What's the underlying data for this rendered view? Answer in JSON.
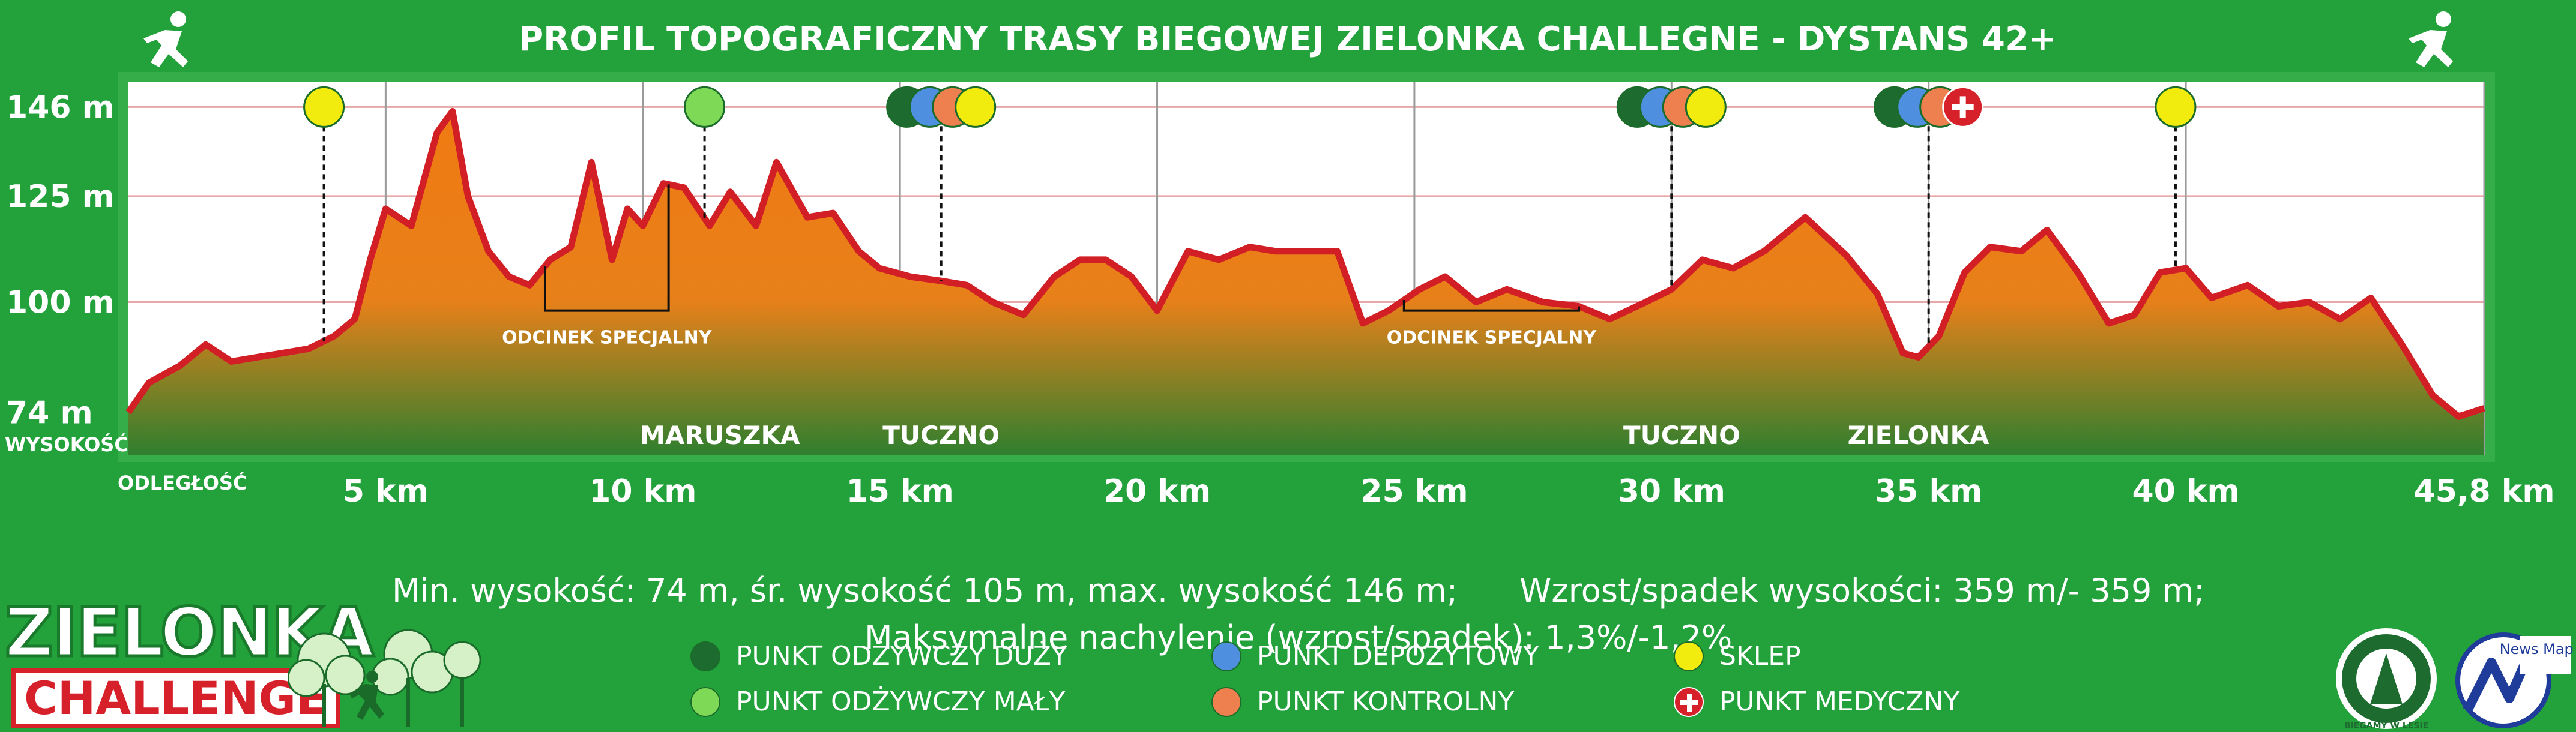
{
  "title": "PROFIL TOPOGRAFICZNY TRASY BIEGOWEJ ZIELONKA CHALLEGNE - DYSTANS 42+",
  "axis_label_y": "WYSOKOŚĆ",
  "axis_label_x": "ODLEGŁOŚĆ",
  "chart_data": {
    "type": "area",
    "title": "PROFIL TOPOGRAFICZNY TRASY BIEGOWEJ ZIELONKA CHALLEGNE - DYSTANS 42+",
    "xlabel": "ODLEGŁOŚĆ",
    "ylabel": "WYSOKOŚĆ",
    "xlim": [
      0,
      45.8
    ],
    "ylim": [
      64,
      152
    ],
    "y_ticks": [
      74,
      100,
      125,
      146
    ],
    "y_tick_labels": [
      "74 m",
      "100 m",
      "125 m",
      "146 m"
    ],
    "x_ticks": [
      5,
      10,
      15,
      20,
      25,
      30,
      35,
      40,
      45.8
    ],
    "x_tick_labels": [
      "5 km",
      "10 km",
      "15 km",
      "20 km",
      "25 km",
      "30 km",
      "35 km",
      "40 km",
      "45,8 km"
    ],
    "grid": true,
    "series": [
      {
        "name": "Wysokość (m)",
        "x": [
          0,
          0.4,
          1.0,
          1.5,
          2.0,
          2.5,
          3.0,
          3.5,
          4.0,
          4.4,
          4.7,
          5.0,
          5.5,
          6.0,
          6.3,
          6.6,
          7.0,
          7.4,
          7.8,
          8.2,
          8.6,
          9.0,
          9.4,
          9.7,
          10.0,
          10.4,
          10.8,
          11.3,
          11.7,
          12.2,
          12.6,
          13.2,
          13.7,
          14.2,
          14.6,
          15.2,
          15.8,
          16.3,
          16.8,
          17.4,
          18.0,
          18.5,
          19.0,
          19.5,
          20.0,
          20.6,
          21.2,
          21.8,
          22.3,
          22.9,
          23.5,
          24.0,
          24.5,
          25.1,
          25.6,
          26.2,
          26.8,
          27.5,
          28.2,
          28.8,
          29.5,
          30.0,
          30.6,
          31.2,
          31.8,
          32.6,
          33.4,
          34.0,
          34.5,
          34.8,
          35.2,
          35.7,
          36.2,
          36.8,
          37.3,
          37.9,
          38.5,
          39.0,
          39.5,
          40.0,
          40.5,
          41.2,
          41.8,
          42.4,
          43.0,
          43.6,
          44.2,
          44.8,
          45.3,
          45.8
        ],
        "y": [
          74,
          81,
          85,
          90,
          86,
          87,
          88,
          89,
          92,
          96,
          110,
          122,
          118,
          140,
          145,
          125,
          112,
          106,
          104,
          110,
          113,
          133,
          110,
          122,
          118,
          128,
          127,
          118,
          126,
          118,
          133,
          120,
          121,
          112,
          108,
          106,
          105,
          104,
          100,
          97,
          106,
          110,
          110,
          106,
          98,
          112,
          110,
          113,
          112,
          112,
          112,
          95,
          98,
          103,
          106,
          100,
          103,
          100,
          99,
          96,
          100,
          103,
          110,
          108,
          112,
          120,
          111,
          102,
          88,
          87,
          92,
          107,
          113,
          112,
          117,
          107,
          95,
          97,
          107,
          108,
          101,
          104,
          99,
          100,
          96,
          101,
          90,
          78,
          73,
          75
        ]
      }
    ],
    "markers": [
      {
        "km": 3.8,
        "types": [
          "SKLEP"
        ]
      },
      {
        "km": 11.2,
        "types": [
          "PUNKT ODŻYWCZY MAŁY"
        ]
      },
      {
        "km": 15.8,
        "types": [
          "PUNKT ODŻYWCZY DUŻY",
          "PUNKT DEPOZYTOWY",
          "PUNKT KONTROLNY",
          "SKLEP"
        ]
      },
      {
        "km": 30.0,
        "types": [
          "PUNKT ODŻYWCZY DUŻY",
          "PUNKT DEPOZYTOWY",
          "PUNKT KONTROLNY",
          "SKLEP"
        ]
      },
      {
        "km": 35.0,
        "types": [
          "PUNKT ODŻYWCZY DUŻY",
          "PUNKT DEPOZYTOWY",
          "PUNKT KONTROLNY",
          "PUNKT MEDYCZNY"
        ]
      },
      {
        "km": 39.8,
        "types": [
          "SKLEP"
        ]
      }
    ],
    "special_sections": [
      {
        "label": "ODCINEK SPECJALNY",
        "from_km": 8.1,
        "to_km": 10.5
      },
      {
        "label": "ODCINEK SPECJALNY",
        "from_km": 24.8,
        "to_km": 28.2
      }
    ],
    "places": [
      {
        "km": 11.5,
        "label": "MARUSZKA"
      },
      {
        "km": 15.8,
        "label": "TUCZNO"
      },
      {
        "km": 30.2,
        "label": "TUCZNO"
      },
      {
        "km": 34.8,
        "label": "ZIELONKA"
      }
    ]
  },
  "stats": {
    "line1_left": "Min. wysokość: 74 m, śr. wysokość 105 m, max. wysokość 146 m;",
    "line1_right": "Wzrost/spadek wysokości: 359 m/- 359 m;",
    "line2": "Maksymalne nachylenie (wzrost/spadek): 1,3%/-1,2%"
  },
  "legend": [
    {
      "label": "PUNKT ODŻYWCZY DUŻY",
      "color": "#1d6b2e"
    },
    {
      "label": "PUNKT ODŻYWCZY MAŁY",
      "color": "#7ed957"
    },
    {
      "label": "PUNKT DEPOZYTOWY",
      "color": "#4f8fe0"
    },
    {
      "label": "PUNKT KONTROLNY",
      "color": "#ee8050"
    },
    {
      "label": "SKLEP",
      "color": "#f1ec0d"
    },
    {
      "label": "PUNKT MEDYCZNY",
      "color": "#ffffff"
    }
  ],
  "colors": {
    "background": "#23a23c",
    "plot_bg": "#ffffff",
    "fill_top": "#f07a12",
    "fill_bottom": "#2f7f2e",
    "line": "#d21f26"
  },
  "logos": {
    "left_word1": "ZIELONKA",
    "left_word2": "CHALLENGE",
    "right_badge": "BIEGAMY W LESIE",
    "right_news": "News Map.pl"
  }
}
